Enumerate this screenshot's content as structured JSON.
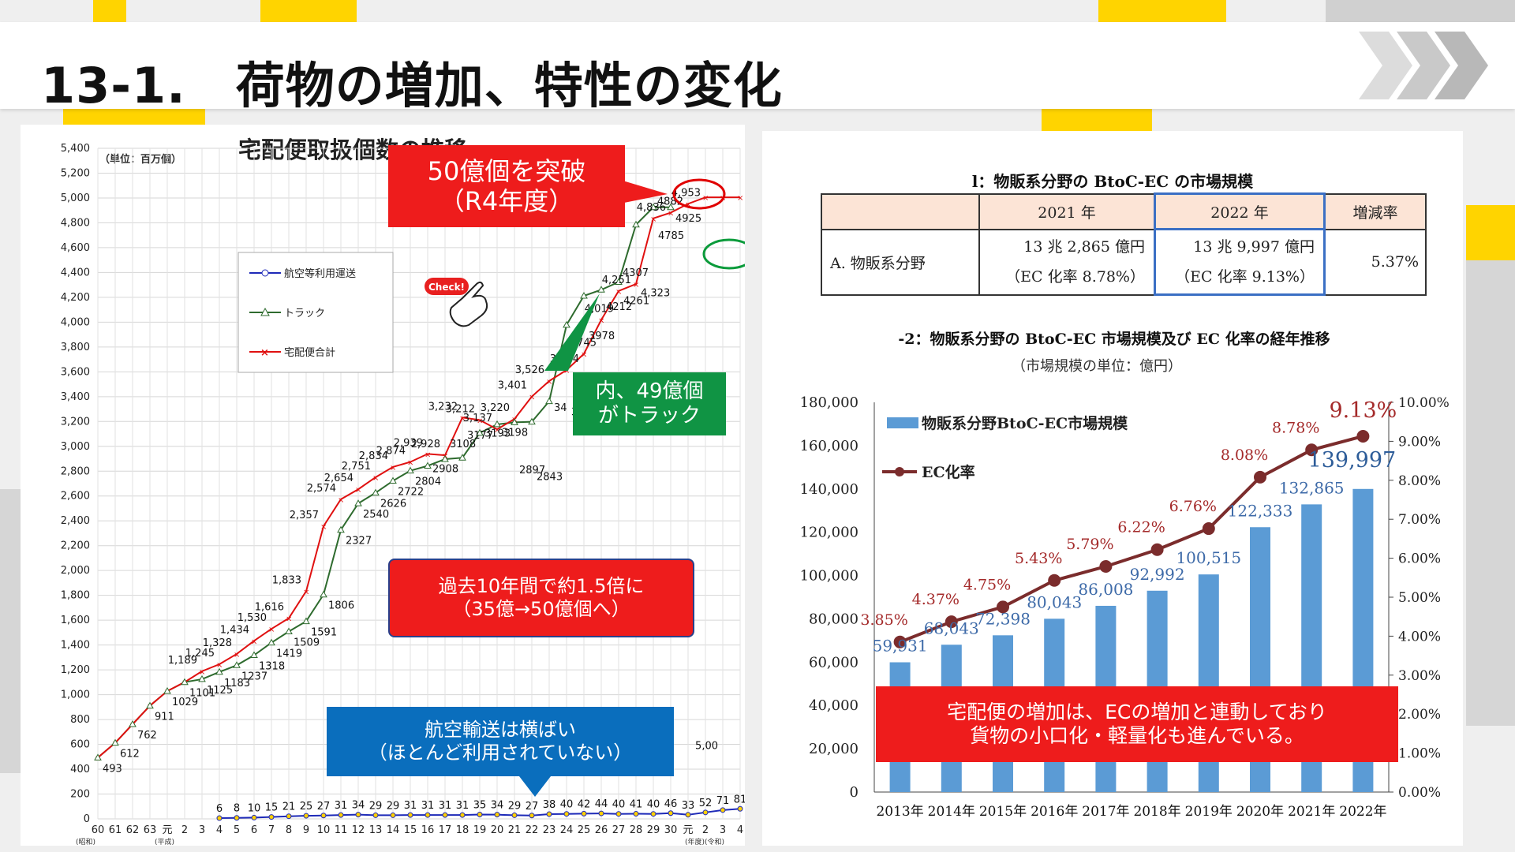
{
  "header": {
    "title": "13-1.　荷物の増加、特性の変化"
  },
  "colors": {
    "accent_yellow": "#ffd400",
    "red_callout": "#ee1c1c",
    "green_callout": "#109444",
    "blue_callout": "#0a6ebd",
    "bar_blue": "#5b9bd5",
    "line_maroon": "#7b2c2c"
  },
  "left_chart": {
    "title": "宅配便取扱個数の推移",
    "unit": "（単位：百万個）",
    "legend": [
      "航空等利用運送",
      "トラック",
      "宅配便合計"
    ],
    "yticks": [
      "5,400",
      "5,200",
      "5,000",
      "4,800",
      "4,600",
      "4,400",
      "4,200",
      "4,000",
      "3,800",
      "3,600",
      "3,400",
      "3,200",
      "3,000",
      "2,800",
      "2,600",
      "2,400",
      "2,200",
      "2,000",
      "1,800",
      "1,600",
      "1,400",
      "1,200",
      "1,000",
      "800",
      "600",
      "400",
      "200",
      "0"
    ],
    "xticks": [
      "60",
      "61",
      "62",
      "63",
      "元",
      "2",
      "3",
      "4",
      "5",
      "6",
      "7",
      "8",
      "9",
      "10",
      "11",
      "12",
      "13",
      "14",
      "15",
      "16",
      "17",
      "18",
      "19",
      "20",
      "21",
      "22",
      "23",
      "24",
      "25",
      "26",
      "27",
      "28",
      "29",
      "30",
      "元",
      "2",
      "3",
      "4"
    ],
    "era_labels": [
      "(昭和)",
      "(平成)",
      "(年度)(令和)"
    ],
    "total_labels": [
      "1,189",
      "1,245",
      "1,328",
      "1,434",
      "1,530",
      "1,616",
      "1,833",
      "2,357",
      "2,574",
      "2,654",
      "2,751",
      "2,834",
      "2,874",
      "2,939",
      "2,928",
      "3,232",
      "3,212",
      "3,137",
      "3,220",
      "3,401",
      "3,526",
      "3,63",
      "3,614",
      "3,745",
      "4,019",
      "4,251",
      "4307",
      "4,836",
      "4882",
      "4,953",
      "5,00"
    ],
    "truck_labels": [
      "493",
      "612",
      "762",
      "911",
      "1029",
      "1101",
      "1125",
      "1183",
      "1237",
      "1318",
      "1419",
      "1509",
      "1591",
      "1806",
      "2327",
      "2540",
      "2626",
      "2722",
      "2804",
      "2908",
      "3108",
      "3177",
      "3193",
      "3198",
      "2897",
      "2843",
      "34",
      "3363",
      "3978",
      "4212",
      "4261",
      "4,323",
      "4785",
      "4925"
    ],
    "air_labels": [
      "6",
      "8",
      "10",
      "15",
      "21",
      "25",
      "27",
      "31",
      "34",
      "29",
      "29",
      "31",
      "31",
      "31",
      "31",
      "35",
      "34",
      "29",
      "27",
      "38",
      "40",
      "42",
      "44",
      "40",
      "41",
      "40",
      "46",
      "33",
      "52",
      "71",
      "81"
    ],
    "callouts": {
      "exceed": "50億個を突破\n（R4年度）",
      "truck": "内、49億個\nがトラック",
      "ten_year": "過去10年間で約1.5倍に\n（35億→50億個へ）",
      "air": "航空輸送は横ばい\n（ほとんど利用されていない）",
      "check": "Check!"
    }
  },
  "ec_table": {
    "title": "l：物販系分野の BtoC-EC の市場規模",
    "headers": [
      "",
      "2021 年",
      "2022 年",
      "増減率"
    ],
    "row_label": "A. 物販系分野",
    "y2021": [
      "13 兆 2,865 億円",
      "（EC 化率 8.78%）"
    ],
    "y2022": [
      "13 兆 9,997 億円",
      "（EC 化率 9.13%）"
    ],
    "rate": "5.37%"
  },
  "chart_data": {
    "type": "bar",
    "title": "-2：物販系分野の BtoC-EC 市場規模及び EC 化率の経年推移",
    "subtitle": "（市場規模の単位：億円）",
    "categories": [
      "2013年",
      "2014年",
      "2015年",
      "2016年",
      "2017年",
      "2018年",
      "2019年",
      "2020年",
      "2021年",
      "2022年"
    ],
    "series": [
      {
        "name": "物販系分野BtoC-EC市場規模",
        "type": "bar",
        "axis": "left",
        "values": [
          59931,
          68043,
          72398,
          80043,
          86008,
          92992,
          100515,
          122333,
          132865,
          139997
        ],
        "labels": [
          "59,931",
          "68,043",
          "72,398",
          "80,043",
          "86,008",
          "92,992",
          "100,515",
          "122,333",
          "132,865",
          "139,997"
        ]
      },
      {
        "name": "EC化率",
        "type": "line",
        "axis": "right",
        "values": [
          3.85,
          4.37,
          4.75,
          5.43,
          5.79,
          6.22,
          6.76,
          8.08,
          8.78,
          9.13
        ],
        "labels": [
          "3.85%",
          "4.37%",
          "4.75%",
          "5.43%",
          "5.79%",
          "6.22%",
          "6.76%",
          "8.08%",
          "8.78%",
          "9.13%"
        ]
      }
    ],
    "ylim": [
      0,
      180000
    ],
    "yticks": [
      "180,000",
      "160,000",
      "140,000",
      "120,000",
      "100,000",
      "80,000",
      "60,000",
      "40,000",
      "20,000",
      "0"
    ],
    "y2lim": [
      0,
      10
    ],
    "y2ticks": [
      "10.00%",
      "9.00%",
      "8.00%",
      "7.00%",
      "6.00%",
      "5.00%",
      "4.00%",
      "3.00%",
      "2.00%",
      "1.00%",
      "0.00%"
    ],
    "legend_position": "top-left",
    "grid": false,
    "annotation": "宅配便の増加は、ECの増加と連動しており\n貨物の小口化・軽量化も進んでいる。"
  }
}
